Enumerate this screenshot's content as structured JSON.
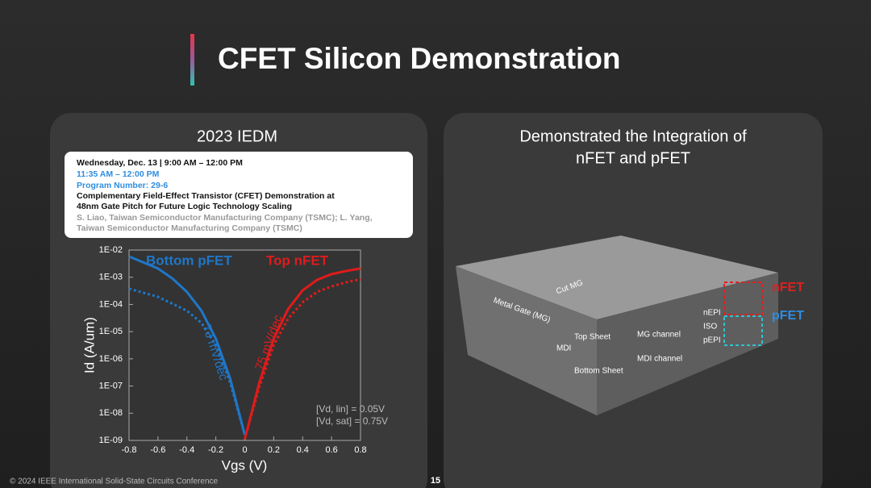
{
  "slide": {
    "title": "CFET Silicon Demonstration",
    "footer": "© 2024 IEEE International Solid-State Circuits Conference",
    "page_number": "15"
  },
  "left_panel": {
    "heading": "2023 IEDM",
    "card": {
      "date": "Wednesday, Dec. 13 | 9:00 AM – 12:00 PM",
      "time": "11:35 AM – 12:00 PM",
      "program": "Program Number: 29-6",
      "title_lines": [
        "Complementary Field-Effect Transistor (CFET) Demonstration at",
        "48nm Gate Pitch for Future Logic Technology Scaling"
      ],
      "author_lines": [
        "S. Liao, Taiwan Semiconductor Manufacturing Company (TSMC); L. Yang,",
        "Taiwan Semiconductor Manufacturing Company (TSMC)"
      ]
    }
  },
  "chart_data": {
    "type": "line",
    "x_label": "Vgs (V)",
    "y_label": "Id (A/um)",
    "log_y": true,
    "xlim": [
      -0.8,
      0.8
    ],
    "xticks": [
      -0.8,
      -0.6,
      -0.4,
      -0.2,
      0,
      0.2,
      0.4,
      0.6,
      0.8
    ],
    "ylim": [
      1e-09,
      0.01
    ],
    "yticks": [
      {
        "value": 1e-09,
        "label": "1E-09"
      },
      {
        "value": 1e-08,
        "label": "1E-08"
      },
      {
        "value": 1e-07,
        "label": "1E-07"
      },
      {
        "value": 1e-06,
        "label": "1E-06"
      },
      {
        "value": 1e-05,
        "label": "1E-05"
      },
      {
        "value": 0.0001,
        "label": "1E-04"
      },
      {
        "value": 0.001,
        "label": "1E-03"
      },
      {
        "value": 0.01,
        "label": "1E-02"
      }
    ],
    "series": [
      {
        "name": "Bottom pFET",
        "color": "#1f77c8",
        "dash": false,
        "x": [
          -0.8,
          -0.7,
          -0.6,
          -0.5,
          -0.4,
          -0.3,
          -0.2,
          -0.1,
          0
        ],
        "values": [
          0.0058,
          0.0035,
          0.0021,
          0.0009,
          0.00029,
          5.9e-05,
          5.5e-06,
          1.8e-07,
          1.6e-09
        ]
      },
      {
        "color": "#1f77c8",
        "dash": true,
        "x": [
          -0.8,
          -0.6,
          -0.4,
          -0.3,
          -0.2,
          -0.1,
          0
        ],
        "values": [
          0.00038,
          0.00019,
          5.9e-05,
          2.1e-05,
          3.2e-06,
          1.3e-07,
          1.6e-09
        ]
      },
      {
        "name": "Top nFET",
        "color": "#e01b1b",
        "dash": false,
        "x": [
          0,
          0.1,
          0.2,
          0.3,
          0.4,
          0.5,
          0.6,
          0.7,
          0.8
        ],
        "values": [
          1.1e-09,
          1.3e-07,
          5.5e-06,
          6.8e-05,
          0.00033,
          0.0008,
          0.0013,
          0.0017,
          0.0021
        ]
      },
      {
        "color": "#e01b1b",
        "dash": true,
        "x": [
          0,
          0.1,
          0.2,
          0.3,
          0.4,
          0.5,
          0.6,
          0.7,
          0.8
        ],
        "values": [
          1.1e-09,
          9e-08,
          3.2e-06,
          3e-05,
          0.00012,
          0.00029,
          0.00046,
          0.00065,
          0.00085
        ]
      }
    ],
    "annotations": [
      "73 mV/dec",
      "75 mV/dec",
      "[Vd, lin] = 0.05V",
      "[Vd, sat] = 0.75V"
    ]
  },
  "right_panel": {
    "title_lines": [
      "Demonstrated the Integration of",
      "nFET and pFET"
    ],
    "labels": [
      "Cut MG",
      "Metal Gate (MG)",
      "Top Sheet",
      "MDI",
      "Bottom Sheet",
      "MG channel",
      "MDI channel",
      "nEPI",
      "ISO",
      "pEPI"
    ],
    "nfet": "nFET",
    "pfet": "pFET"
  }
}
